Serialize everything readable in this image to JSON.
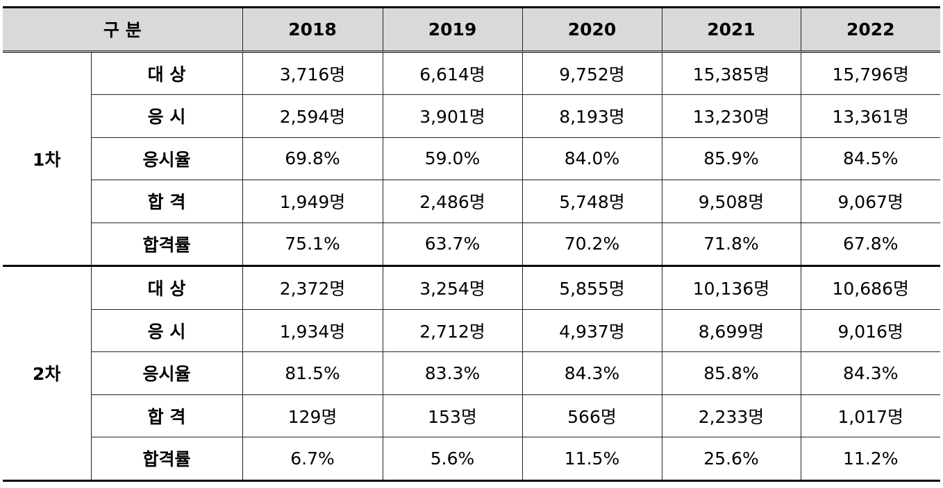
{
  "table": {
    "header": [
      "구 분",
      "2018",
      "2019",
      "2020",
      "2021",
      "2022"
    ],
    "groups": [
      {
        "label": "1차",
        "rows": [
          [
            "대 상",
            "3,716명",
            "6,614명",
            "9,752명",
            "15,385명",
            "15,796명"
          ],
          [
            "응 시",
            "2,594명",
            "3,901명",
            "8,193명",
            "13,230명",
            "13,361명"
          ],
          [
            "응시율",
            "69.8%",
            "59.0%",
            "84.0%",
            "85.9%",
            "84.5%"
          ],
          [
            "합 격",
            "1,949명",
            "2,486명",
            "5,748명",
            "9,508명",
            "9,067명"
          ],
          [
            "합격률",
            "75.1%",
            "63.7%",
            "70.2%",
            "71.8%",
            "67.8%"
          ]
        ]
      },
      {
        "label": "2차",
        "rows": [
          [
            "대 상",
            "2,372명",
            "3,254명",
            "5,855명",
            "10,136명",
            "10,686명"
          ],
          [
            "응 시",
            "1,934명",
            "2,712명",
            "4,937명",
            "8,699명",
            "9,016명"
          ],
          [
            "응시율",
            "81.5%",
            "83.3%",
            "84.3%",
            "85.8%",
            "84.3%"
          ],
          [
            "합 격",
            "129명",
            "153명",
            "566명",
            "2,233명",
            "1,017명"
          ],
          [
            "합격률",
            "6.7%",
            "5.6%",
            "11.5%",
            "25.6%",
            "11.2%"
          ]
        ]
      }
    ]
  }
}
